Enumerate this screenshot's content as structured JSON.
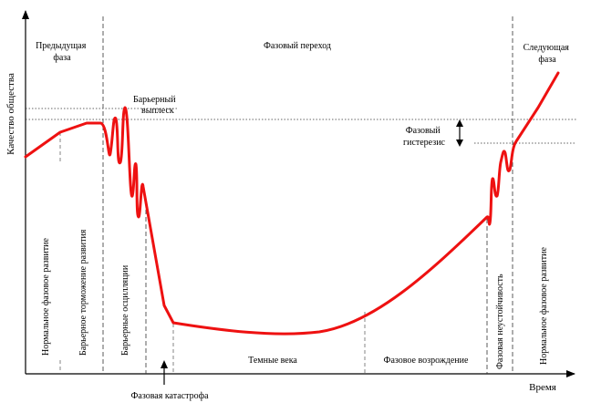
{
  "axes": {
    "y_label": "Качество общества",
    "x_label": "Время"
  },
  "phases": {
    "previous": [
      "Предыдущая",
      "фаза"
    ],
    "transition": "Фазовый переход",
    "next": [
      "Следующая",
      "фаза"
    ]
  },
  "annotations": {
    "barrier_burst": [
      "Барьерный",
      "выплеск"
    ],
    "phase_hysteresis": [
      "Фазовый",
      "гистерезис"
    ],
    "phase_catastrophe": "Фазовая катастрофа"
  },
  "stage_labels": {
    "normal_development": "Нормальное фазовое развитие",
    "barrier_braking": "Барьерное торможение развития",
    "barrier_oscillations": "Барьерные осцилляции",
    "dark_ages": "Темные века",
    "phase_revival": "Фазовое возрождение",
    "phase_instability": "Фазовая неустойчивость",
    "normal_development_next": "Нормальное фазовое развитие"
  },
  "colors": {
    "curve": "#ee1111",
    "axes": "#000000",
    "guides": "#666666"
  }
}
